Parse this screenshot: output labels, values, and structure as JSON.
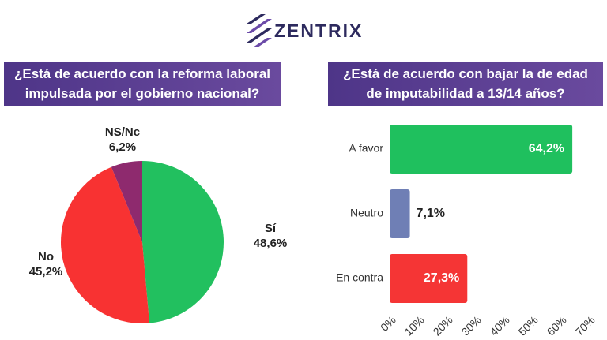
{
  "brand": "ZENTRIX",
  "chart_data": [
    {
      "type": "pie",
      "title": "¿Está de acuerdo con la reforma laboral impulsada por el gobierno nacional?",
      "categories": [
        "Sí",
        "No",
        "NS/Nc"
      ],
      "values": [
        48.6,
        45.2,
        6.2
      ],
      "value_labels": [
        "48,6%",
        "45,2%",
        "6,2%"
      ],
      "colors": [
        "#22c05f",
        "#f83232",
        "#8e2a6e"
      ]
    },
    {
      "type": "hbar",
      "title": "¿Está de acuerdo con bajar la de edad de imputabilidad a 13/14 años?",
      "categories": [
        "A favor",
        "Neutro",
        "En contra"
      ],
      "values": [
        64.2,
        7.1,
        27.3
      ],
      "value_labels": [
        "64,2%",
        "7,1%",
        "27,3%"
      ],
      "colors": [
        "#1fc05e",
        "#6f7fb5",
        "#f53535"
      ],
      "xlim": [
        0,
        70
      ],
      "xticks": [
        {
          "value": 0,
          "label": "0%"
        },
        {
          "value": 10,
          "label": "10%"
        },
        {
          "value": 20,
          "label": "20%"
        },
        {
          "value": 30,
          "label": "30%"
        },
        {
          "value": 40,
          "label": "40%"
        },
        {
          "value": 50,
          "label": "50%"
        },
        {
          "value": 60,
          "label": "60%"
        },
        {
          "value": 70,
          "label": "70%"
        }
      ]
    }
  ]
}
